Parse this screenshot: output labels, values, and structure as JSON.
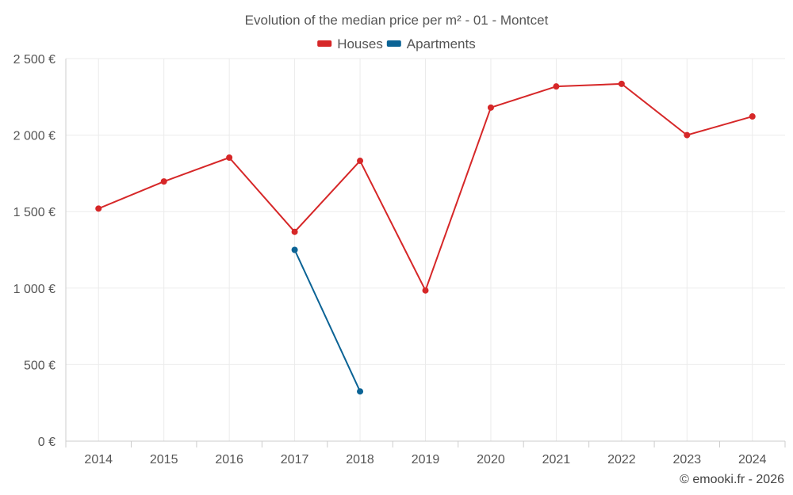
{
  "chart_data": {
    "type": "line",
    "title": "Evolution of the median price per m² - 01 - Montcet",
    "categories": [
      "2014",
      "2015",
      "2016",
      "2017",
      "2018",
      "2019",
      "2020",
      "2021",
      "2022",
      "2023",
      "2024"
    ],
    "series": [
      {
        "name": "Houses",
        "color": "#d62728",
        "values": [
          1520,
          1697,
          1853,
          1368,
          1832,
          985,
          2180,
          2318,
          2335,
          2000,
          2122
        ]
      },
      {
        "name": "Apartments",
        "color": "#0b6395",
        "values": [
          null,
          null,
          null,
          1250,
          325,
          null,
          null,
          null,
          null,
          null,
          null
        ]
      }
    ],
    "ylim": [
      0,
      2500
    ],
    "yticks": [
      0,
      500,
      1000,
      1500,
      2000,
      2500
    ],
    "ytick_labels": [
      "0 €",
      "500 €",
      "1 000 €",
      "1 500 €",
      "2 000 €",
      "2 500 €"
    ],
    "xlabel": "",
    "ylabel": "",
    "legend_position": "top-center",
    "grid": true
  },
  "credit": "© emooki.fr - 2026"
}
